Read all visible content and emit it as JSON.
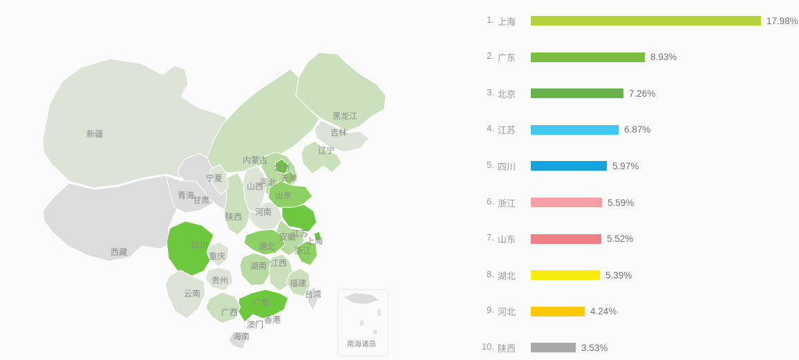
{
  "background_color": "#fafafa",
  "chart_data": {
    "type": "bar",
    "subtype": "china-map-choropleth-with-ranked-bar-list",
    "title": "",
    "xlabel": "",
    "ylabel": "",
    "legend_position": "none",
    "grid": false,
    "categories": [
      "上海",
      "广东",
      "北京",
      "江苏",
      "四川",
      "浙江",
      "山东",
      "湖北",
      "河北",
      "陕西"
    ],
    "values": [
      17.98,
      8.93,
      7.26,
      6.87,
      5.97,
      5.59,
      5.52,
      5.39,
      4.24,
      3.53
    ],
    "value_labels": [
      "17.98%",
      "8.93%",
      "7.26%",
      "6.87%",
      "5.97%",
      "5.59%",
      "5.52%",
      "5.39%",
      "4.24%",
      "3.53%"
    ],
    "bar_colors": [
      "#b5d338",
      "#7cbc40",
      "#68b14c",
      "#42c7f0",
      "#14a5dc",
      "#f2a0a3",
      "#ee7e84",
      "#f6ec0f",
      "#fcc800",
      "#a9a9a9"
    ],
    "xlim": [
      0,
      18
    ],
    "map_region": "China"
  },
  "ranking": {
    "items": [
      {
        "rank_label": "1.",
        "name": "上海",
        "value": 17.98,
        "value_label": "17.98%",
        "color": "#b5d338"
      },
      {
        "rank_label": "2.",
        "name": "广东",
        "value": 8.93,
        "value_label": "8.93%",
        "color": "#7cbc40"
      },
      {
        "rank_label": "3.",
        "name": "北京",
        "value": 7.26,
        "value_label": "7.26%",
        "color": "#68b14c"
      },
      {
        "rank_label": "4.",
        "name": "江苏",
        "value": 6.87,
        "value_label": "6.87%",
        "color": "#42c7f0"
      },
      {
        "rank_label": "5.",
        "name": "四川",
        "value": 5.97,
        "value_label": "5.97%",
        "color": "#14a5dc"
      },
      {
        "rank_label": "6.",
        "name": "浙江",
        "value": 5.59,
        "value_label": "5.59%",
        "color": "#f2a0a3"
      },
      {
        "rank_label": "7.",
        "name": "山东",
        "value": 5.52,
        "value_label": "5.52%",
        "color": "#ee7e84"
      },
      {
        "rank_label": "8.",
        "name": "湖北",
        "value": 5.39,
        "value_label": "5.39%",
        "color": "#f6ec0f"
      },
      {
        "rank_label": "9.",
        "name": "河北",
        "value": 4.24,
        "value_label": "4.24%",
        "color": "#fcc800"
      },
      {
        "rank_label": "10.",
        "name": "陕西",
        "value": 3.53,
        "value_label": "3.53%",
        "color": "#a9a9a9"
      }
    ],
    "label_color": "#999999",
    "value_color": "#737373"
  },
  "map": {
    "inset_label": "南海诸岛",
    "palette": {
      "strong": "#6dc83d",
      "medium": "#8dd164",
      "lightmed": "#b7dba1",
      "light": "#cbe1bd",
      "faint": "#dde4d7",
      "gray": "#dcdcdc"
    },
    "provinces": [
      {
        "key": "xinjiang",
        "name": "新疆",
        "level": "faint"
      },
      {
        "key": "xizang",
        "name": "西藏",
        "level": "gray"
      },
      {
        "key": "qinghai",
        "name": "青海",
        "level": "gray"
      },
      {
        "key": "gansu",
        "name": "甘肃",
        "level": "gray"
      },
      {
        "key": "neimenggu",
        "name": "内蒙古",
        "level": "light"
      },
      {
        "key": "heilongjiang",
        "name": "黑龙江",
        "level": "light"
      },
      {
        "key": "jilin",
        "name": "吉林",
        "level": "faint"
      },
      {
        "key": "liaoning",
        "name": "辽宁",
        "level": "light"
      },
      {
        "key": "hebei",
        "name": "河北",
        "level": "lightmed"
      },
      {
        "key": "beijing",
        "name": "北京",
        "level": "strong"
      },
      {
        "key": "tianjin",
        "name": "天津",
        "level": "medium"
      },
      {
        "key": "shanxi",
        "name": "山西",
        "level": "faint"
      },
      {
        "key": "shaanxi",
        "name": "陕西",
        "level": "light"
      },
      {
        "key": "ningxia",
        "name": "宁夏",
        "level": "faint"
      },
      {
        "key": "shandong",
        "name": "山东",
        "level": "medium"
      },
      {
        "key": "henan",
        "name": "河南",
        "level": "faint"
      },
      {
        "key": "jiangsu",
        "name": "江苏",
        "level": "strong"
      },
      {
        "key": "anhui",
        "name": "安徽",
        "level": "lightmed"
      },
      {
        "key": "shanghai",
        "name": "上海",
        "level": "strong"
      },
      {
        "key": "zhejiang",
        "name": "浙江",
        "level": "medium"
      },
      {
        "key": "hubei",
        "name": "湖北",
        "level": "medium"
      },
      {
        "key": "chongqing",
        "name": "重庆",
        "level": "faint"
      },
      {
        "key": "sichuan",
        "name": "四川",
        "level": "strong"
      },
      {
        "key": "guizhou",
        "name": "贵州",
        "level": "faint"
      },
      {
        "key": "yunnan",
        "name": "云南",
        "level": "faint"
      },
      {
        "key": "hunan",
        "name": "湖南",
        "level": "lightmed"
      },
      {
        "key": "jiangxi",
        "name": "江西",
        "level": "light"
      },
      {
        "key": "fujian",
        "name": "福建",
        "level": "light"
      },
      {
        "key": "taiwan",
        "name": "台湾",
        "level": "gray"
      },
      {
        "key": "guangdong",
        "name": "广东",
        "level": "strong"
      },
      {
        "key": "guangxi",
        "name": "广西",
        "level": "light"
      },
      {
        "key": "hainan",
        "name": "海南",
        "level": "gray"
      },
      {
        "key": "hongkong",
        "name": "香港",
        "level": "gray"
      },
      {
        "key": "macau",
        "name": "澳门",
        "level": "gray"
      }
    ]
  }
}
